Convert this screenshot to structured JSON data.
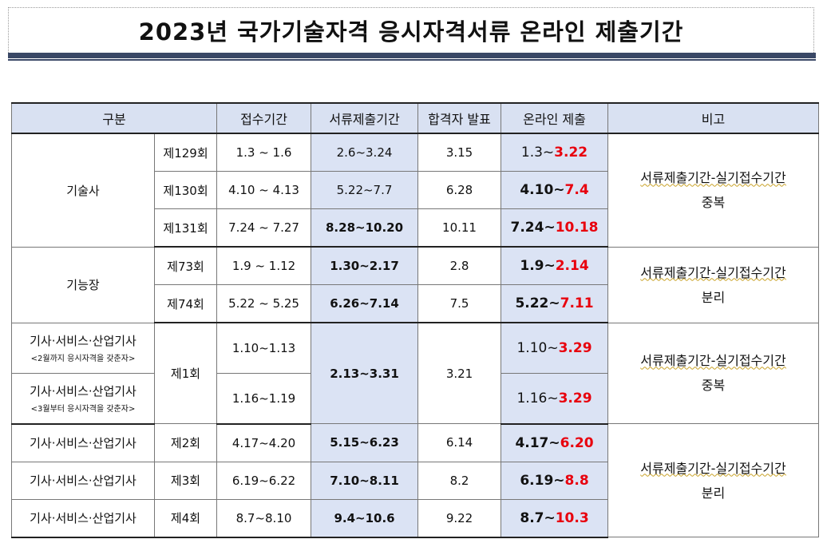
{
  "title": "2023년 국가기술자격 응시자격서류 온라인 제출기간",
  "headers": {
    "category": "구분",
    "reception": "접수기간",
    "doc_submit": "서류제출기간",
    "pass_announce": "합격자 발표",
    "online_submit": "온라인 제출",
    "remarks": "비고"
  },
  "groups": {
    "engineer_master": "기술사",
    "master_craftsman": "기능장",
    "engineer_a": "기사·서비스·산업기사",
    "engineer_a_sub": "<2월까지 응시자격을 갖춘자>",
    "engineer_b": "기사·서비스·산업기사",
    "engineer_b_sub": "<3월부터 응시자격을 갖춘자>",
    "engineer_2": "기사·서비스·산업기사",
    "engineer_3": "기사·서비스·산업기사",
    "engineer_4": "기사·서비스·산업기사"
  },
  "rows": [
    {
      "round": "제129회",
      "reception": "1.3 ~ 1.6",
      "doc": "2.6~3.24",
      "announce": "3.15",
      "online_start": "1.3~",
      "online_end": "3.22"
    },
    {
      "round": "제130회",
      "reception": "4.10 ~ 4.13",
      "doc": "5.22~7.7",
      "announce": "6.28",
      "online_start": "4.10~",
      "online_end": "7.4"
    },
    {
      "round": "제131회",
      "reception": "7.24 ~ 7.27",
      "doc": "8.28~10.20",
      "announce": "10.11",
      "online_start": "7.24~",
      "online_end": "10.18"
    },
    {
      "round": "제73회",
      "reception": "1.9 ~ 1.12",
      "doc": "1.30~2.17",
      "announce": "2.8",
      "online_start": "1.9~",
      "online_end": "2.14"
    },
    {
      "round": "제74회",
      "reception": "5.22 ~ 5.25",
      "doc": "6.26~7.14",
      "announce": "7.5",
      "online_start": "5.22~",
      "online_end": "7.11"
    },
    {
      "round": "제1회",
      "reception": "1.10~1.13",
      "doc": "2.13~3.31",
      "announce": "3.21",
      "online_start": "1.10~",
      "online_end": "3.29"
    },
    {
      "reception": "1.16~1.19",
      "online_start": "1.16~",
      "online_end": "3.29"
    },
    {
      "round": "제2회",
      "reception": "4.17~4.20",
      "doc": "5.15~6.23",
      "announce": "6.14",
      "online_start": "4.17~",
      "online_end": "6.20"
    },
    {
      "round": "제3회",
      "reception": "6.19~6.22",
      "doc": "7.10~8.11",
      "announce": "8.2",
      "online_start": "6.19~",
      "online_end": "8.8"
    },
    {
      "round": "제4회",
      "reception": "8.7~8.10",
      "doc": "9.4~10.6",
      "announce": "9.22",
      "online_start": "8.7~",
      "online_end": "10.3"
    }
  ],
  "remarks": {
    "r1_line1": "서류제출기간-실기접수기간",
    "r1_line2": "중복",
    "r2_line1": "서류제출기간-실기접수기간",
    "r2_line2": "분리",
    "r3_line1": "서류제출기간-실기접수기간",
    "r3_line2": "중복",
    "r4_line1": "서류제출기간-실기접수기간",
    "r4_line2": "분리"
  },
  "colors": {
    "header_bg": "#d9e1f2",
    "shade_bg": "#dbe3f4",
    "deadline_red": "#e8000d",
    "title_rule": "#3a4866"
  }
}
